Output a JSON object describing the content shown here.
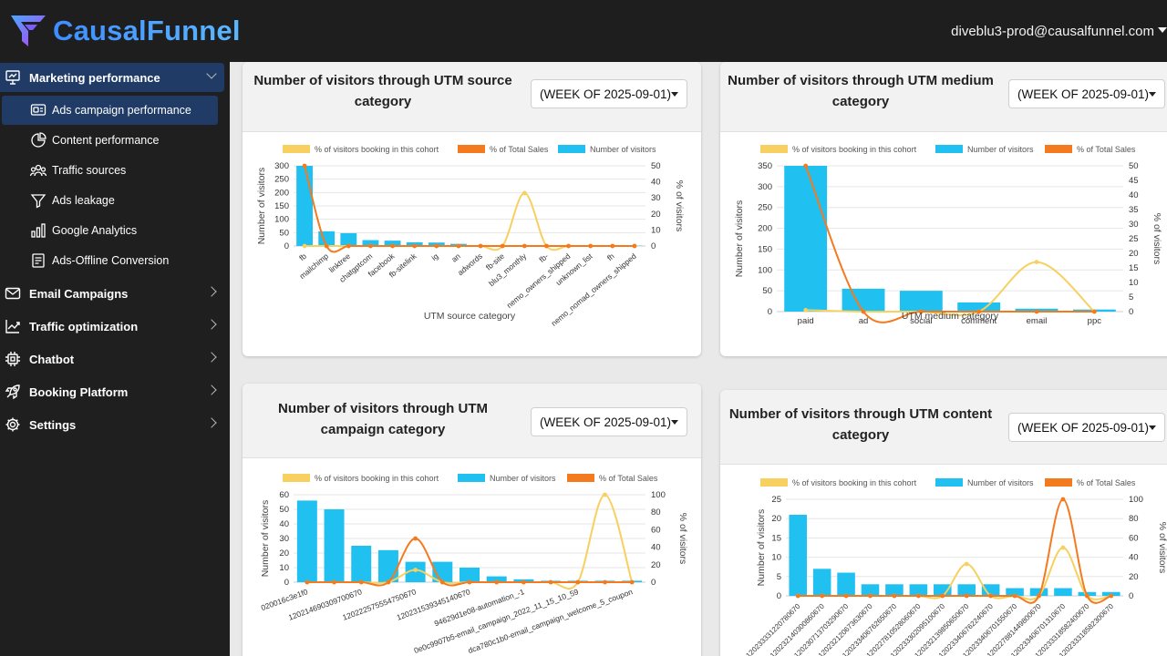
{
  "header": {
    "brand": "CausalFunnel",
    "user_email": "diveblu3-prod@causalfunnel.com"
  },
  "sidebar": {
    "items": [
      {
        "label": "Marketing performance",
        "icon": "presentation-icon",
        "active": true,
        "expanded": true,
        "children": [
          {
            "label": "Ads campaign performance",
            "icon": "ads-icon",
            "active": true
          },
          {
            "label": "Content performance",
            "icon": "pie-chart-icon",
            "active": false
          },
          {
            "label": "Traffic sources",
            "icon": "users-icon",
            "active": false
          },
          {
            "label": "Ads leakage",
            "icon": "funnel-icon",
            "active": false
          },
          {
            "label": "Google Analytics",
            "icon": "bar-chart-icon",
            "active": false
          },
          {
            "label": "Ads-Offline Conversion",
            "icon": "document-icon",
            "active": false
          }
        ]
      },
      {
        "label": "Email Campaigns",
        "icon": "mail-icon"
      },
      {
        "label": "Traffic optimization",
        "icon": "trend-icon"
      },
      {
        "label": "Chatbot",
        "icon": "chip-icon"
      },
      {
        "label": "Booking Platform",
        "icon": "rocket-icon"
      },
      {
        "label": "Settings",
        "icon": "gear-icon"
      }
    ]
  },
  "colors": {
    "booking": "#f7d060",
    "sales": "#f47a1f",
    "visitors": "#20c0f0",
    "sidebar_active": "#1f3b66",
    "brand": "#4fa0ff"
  },
  "chart_data": [
    {
      "id": "utm_source",
      "type": "bar",
      "title": "Number of visitors through UTM source category",
      "filter": "(WEEK OF 2025-09-01)",
      "legend": [
        "% of visitors booking in this cohort",
        "% of Total Sales",
        "Number of visitors"
      ],
      "xlabel": "UTM source category",
      "ylabel": "Number of visitors",
      "y2label": "% of visitors",
      "ylim": [
        0,
        300
      ],
      "yticks": [
        0,
        50,
        100,
        150,
        200,
        250,
        300
      ],
      "y2lim": [
        0,
        50
      ],
      "y2ticks": [
        0,
        10,
        20,
        30,
        40,
        50
      ],
      "categories": [
        "fb",
        "mailchimp",
        "linktree",
        "chatgptcom",
        "facebook",
        "fb-sitelink",
        "ig",
        "an",
        "adwords",
        "fb-site",
        "blu3_monthly",
        "fb-",
        "nemo_owners_shipped",
        "unknown_list",
        "fh",
        "nemo_nomad_owners_shipped"
      ],
      "series": [
        {
          "name": "Number of visitors",
          "kind": "bar",
          "values": [
            300,
            55,
            48,
            22,
            20,
            14,
            13,
            8,
            3,
            2,
            1,
            1,
            1,
            1,
            1,
            1
          ]
        },
        {
          "name": "% of visitors booking in this cohort",
          "kind": "line",
          "values": [
            0,
            0,
            0,
            0,
            0,
            0,
            0,
            0,
            0,
            0,
            33,
            0,
            0,
            0,
            0,
            0
          ]
        },
        {
          "name": "% of Total Sales",
          "kind": "line",
          "values": [
            50,
            0,
            0,
            0,
            0,
            0,
            0,
            0,
            0,
            0,
            0,
            0,
            0,
            0,
            0,
            0
          ]
        }
      ]
    },
    {
      "id": "utm_medium",
      "type": "bar",
      "title": "Number of visitors through UTM medium category",
      "filter": "(WEEK OF 2025-09-01)",
      "legend": [
        "% of visitors booking in this cohort",
        "Number of visitors",
        "% of Total Sales"
      ],
      "xlabel": "UTM medium category",
      "ylabel": "Number of visitors",
      "y2label": "% of visitors",
      "ylim": [
        0,
        350
      ],
      "yticks": [
        0,
        50,
        100,
        150,
        200,
        250,
        300,
        350
      ],
      "y2lim": [
        0,
        50
      ],
      "y2ticks": [
        0,
        5,
        10,
        15,
        20,
        25,
        30,
        35,
        40,
        45,
        50
      ],
      "categories": [
        "paid",
        "ad",
        "social",
        "comment",
        "email",
        "ppc"
      ],
      "series": [
        {
          "name": "Number of visitors",
          "kind": "bar",
          "values": [
            350,
            55,
            50,
            22,
            7,
            5
          ]
        },
        {
          "name": "% of visitors booking in this cohort",
          "kind": "line",
          "values": [
            0.5,
            0,
            0,
            0,
            17,
            0
          ]
        },
        {
          "name": "% of Total Sales",
          "kind": "line",
          "values": [
            50,
            0,
            0,
            0,
            0,
            0
          ]
        }
      ]
    },
    {
      "id": "utm_campaign",
      "type": "bar",
      "title": "Number of visitors through UTM campaign category",
      "filter": "(WEEK OF 2025-09-01)",
      "legend": [
        "% of visitors booking in this cohort",
        "Number of visitors",
        "% of Total Sales"
      ],
      "xlabel": "",
      "ylabel": "Number of visitors",
      "y2label": "% of visitors",
      "ylim": [
        0,
        60
      ],
      "yticks": [
        0,
        10,
        20,
        30,
        40,
        50,
        60
      ],
      "y2lim": [
        0,
        100
      ],
      "y2ticks": [
        0,
        20,
        40,
        60,
        80,
        100
      ],
      "categories": [
        "020016c3e1f0",
        "",
        "120214690309700670",
        "",
        "120222575554750670",
        "",
        "120231539345140670",
        "",
        "94629d1e08-automation_-1",
        "",
        "0e0c9907b5-email_campaign_2022_11_15_10_59",
        "",
        "dca780c1b0-email_campaign_welcome_5_coupon"
      ],
      "series": [
        {
          "name": "Number of visitors",
          "kind": "bar",
          "values": [
            56,
            50,
            25,
            22,
            14,
            14,
            10,
            4,
            2,
            1,
            1,
            1,
            1
          ]
        },
        {
          "name": "% of visitors booking in this cohort",
          "kind": "line",
          "values": [
            0,
            0,
            0,
            0,
            14,
            0,
            0,
            0,
            0,
            0,
            0,
            100,
            0
          ]
        },
        {
          "name": "% of Total Sales",
          "kind": "line",
          "values": [
            0,
            0,
            0,
            0,
            50,
            0,
            0,
            0,
            0,
            0,
            0,
            0,
            0
          ]
        }
      ]
    },
    {
      "id": "utm_content",
      "type": "bar",
      "title": "Number of visitors through UTM content category",
      "filter": "(WEEK OF 2025-09-01)",
      "legend": [
        "% of visitors booking in this cohort",
        "Number of visitors",
        "% of Total Sales"
      ],
      "xlabel": "",
      "ylabel": "Number of visitors",
      "y2label": "% of visitors",
      "ylim": [
        0,
        25
      ],
      "yticks": [
        0,
        5,
        10,
        15,
        20,
        25
      ],
      "y2lim": [
        0,
        100
      ],
      "y2ticks": [
        0,
        20,
        40,
        60,
        80,
        100
      ],
      "categories": [
        "120233331220780670",
        "120232140300860670",
        "120230713703290670",
        "120232120673630670",
        "120233406762650670",
        "120227810528060670",
        "120233302095100670",
        "120232139850650670",
        "120233406762240670",
        "120233406701550670",
        "120227881449800670",
        "120233406701310670",
        "120233318582400670",
        "120233318582300670"
      ],
      "series": [
        {
          "name": "Number of visitors",
          "kind": "bar",
          "values": [
            21,
            7,
            6,
            3,
            3,
            3,
            3,
            3,
            3,
            2,
            2,
            2,
            1,
            1
          ]
        },
        {
          "name": "% of visitors booking in this cohort",
          "kind": "line",
          "values": [
            0,
            0,
            0,
            0,
            0,
            0,
            0,
            33,
            0,
            0,
            0,
            50,
            0,
            0
          ]
        },
        {
          "name": "% of Total Sales",
          "kind": "line",
          "values": [
            0,
            0,
            0,
            0,
            0,
            0,
            0,
            0,
            0,
            0,
            0,
            100,
            0,
            0
          ]
        }
      ]
    }
  ]
}
